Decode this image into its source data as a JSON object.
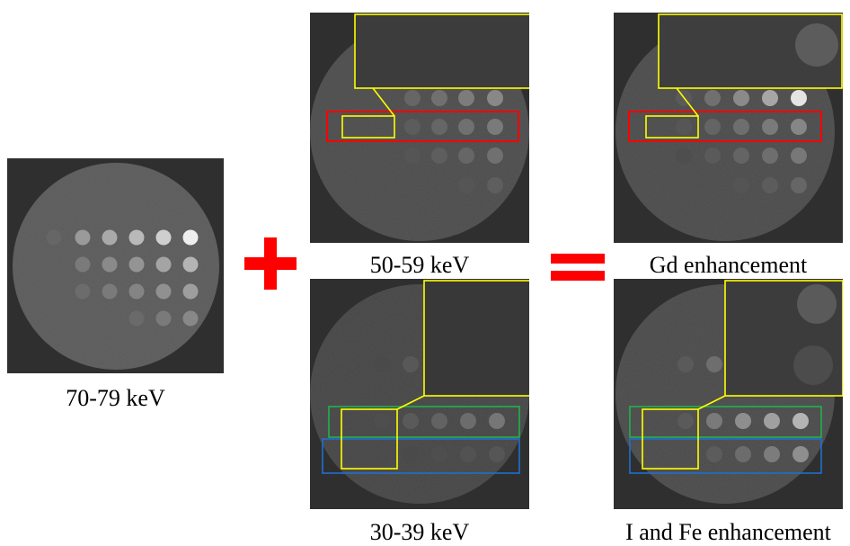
{
  "panels": {
    "p70": {
      "caption": "70-79 keV"
    },
    "p50": {
      "caption": "50-59 keV"
    },
    "p30": {
      "caption": "30-39 keV"
    },
    "pGd": {
      "caption": "Gd enhancement"
    },
    "pIFe": {
      "caption": "I and Fe enhancement"
    }
  },
  "operators": {
    "plus": "plus-sign",
    "equal": "equals-sign"
  },
  "colors": {
    "operator": "#ff0000",
    "zoom_box": "#ffff00",
    "row_box_red": "#ff0000",
    "row_box_green": "#22b14c",
    "row_box_blue": "#1f6fd0"
  }
}
